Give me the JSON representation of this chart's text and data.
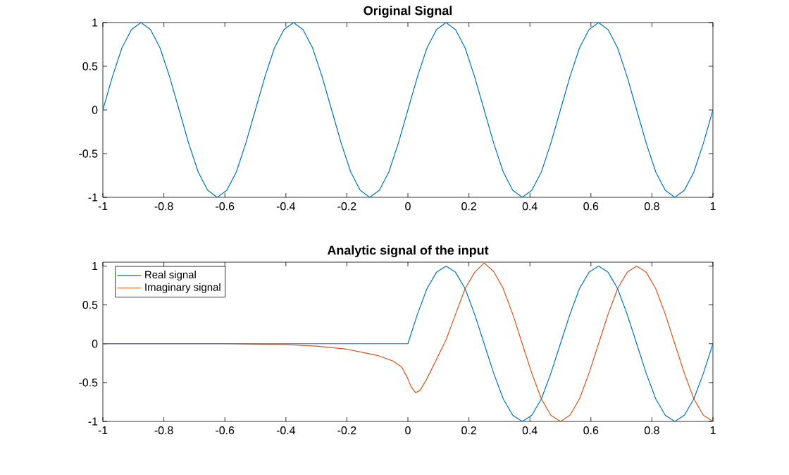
{
  "chart_data": [
    {
      "type": "line",
      "title": "Original Signal",
      "xlim": [
        -1,
        1
      ],
      "ylim": [
        -1,
        1
      ],
      "xticks": [
        -1,
        -0.8,
        -0.6,
        -0.4,
        -0.2,
        0,
        0.2,
        0.4,
        0.6,
        0.8,
        1
      ],
      "yticks": [
        -1,
        -0.5,
        0,
        0.5,
        1
      ],
      "series": [
        {
          "color": "#0072bd",
          "x": [
            -1,
            -0.96875,
            -0.9375,
            -0.90625,
            -0.875,
            -0.84375,
            -0.8125,
            -0.78125,
            -0.75,
            -0.71875,
            -0.6875,
            -0.65625,
            -0.625,
            -0.59375,
            -0.5625,
            -0.53125,
            -0.5,
            -0.46875,
            -0.4375,
            -0.40625,
            -0.375,
            -0.34375,
            -0.3125,
            -0.28125,
            -0.25,
            -0.21875,
            -0.1875,
            -0.15625,
            -0.125,
            -0.09375,
            -0.0625,
            -0.03125,
            0,
            0.03125,
            0.0625,
            0.09375,
            0.125,
            0.15625,
            0.1875,
            0.21875,
            0.25,
            0.28125,
            0.3125,
            0.34375,
            0.375,
            0.40625,
            0.4375,
            0.46875,
            0.5,
            0.53125,
            0.5625,
            0.59375,
            0.625,
            0.65625,
            0.6875,
            0.71875,
            0.75,
            0.78125,
            0.8125,
            0.84375,
            0.875,
            0.90625,
            0.9375,
            0.96875,
            1
          ],
          "values": [
            0,
            0.38,
            0.71,
            0.92,
            1,
            0.92,
            0.71,
            0.38,
            0,
            -0.38,
            -0.71,
            -0.92,
            -1,
            -0.92,
            -0.71,
            -0.38,
            0,
            0.38,
            0.71,
            0.92,
            1,
            0.92,
            0.71,
            0.38,
            0,
            -0.38,
            -0.71,
            -0.92,
            -1,
            -0.92,
            -0.71,
            -0.38,
            0,
            0.38,
            0.71,
            0.92,
            1,
            0.92,
            0.71,
            0.38,
            0,
            -0.38,
            -0.71,
            -0.92,
            -1,
            -0.92,
            -0.71,
            -0.38,
            0,
            0.38,
            0.71,
            0.92,
            1,
            0.92,
            0.71,
            0.38,
            0,
            -0.38,
            -0.71,
            -0.92,
            -1,
            -0.92,
            -0.71,
            -0.38,
            0
          ]
        }
      ]
    },
    {
      "type": "line",
      "title": "Analytic signal of the input",
      "xlim": [
        -1,
        1
      ],
      "ylim": [
        -1,
        1.05
      ],
      "xticks": [
        -1,
        -0.8,
        -0.6,
        -0.4,
        -0.2,
        0,
        0.2,
        0.4,
        0.6,
        0.8,
        1
      ],
      "yticks": [
        -1,
        -0.5,
        0,
        0.5,
        1
      ],
      "legend": "top left",
      "series": [
        {
          "name": "Real signal",
          "color": "#0072bd",
          "x": [
            -1,
            0,
            0.03125,
            0.0625,
            0.09375,
            0.125,
            0.15625,
            0.1875,
            0.21875,
            0.25,
            0.28125,
            0.3125,
            0.34375,
            0.375,
            0.40625,
            0.4375,
            0.46875,
            0.5,
            0.53125,
            0.5625,
            0.59375,
            0.625,
            0.65625,
            0.6875,
            0.71875,
            0.75,
            0.78125,
            0.8125,
            0.84375,
            0.875,
            0.90625,
            0.9375,
            0.96875,
            1
          ],
          "values": [
            0,
            0,
            0.38,
            0.71,
            0.92,
            1,
            0.92,
            0.71,
            0.38,
            0,
            -0.38,
            -0.71,
            -0.92,
            -1,
            -0.92,
            -0.71,
            -0.38,
            0,
            0.38,
            0.71,
            0.92,
            1,
            0.92,
            0.71,
            0.38,
            0,
            -0.38,
            -0.71,
            -0.92,
            -1,
            -0.92,
            -0.71,
            -0.38,
            0
          ]
        },
        {
          "name": "Imaginary signal",
          "color": "#d95319",
          "x": [
            -1,
            -0.6,
            -0.4,
            -0.3,
            -0.2,
            -0.1,
            -0.05,
            -0.02,
            0,
            0.01,
            0.025,
            0.04,
            0.0625,
            0.09375,
            0.125,
            0.15625,
            0.1875,
            0.21875,
            0.25,
            0.28125,
            0.3125,
            0.34375,
            0.375,
            0.40625,
            0.4375,
            0.46875,
            0.5,
            0.53125,
            0.5625,
            0.59375,
            0.625,
            0.65625,
            0.6875,
            0.71875,
            0.75,
            0.78125,
            0.8125,
            0.84375,
            0.875,
            0.90625,
            0.9375,
            0.96875,
            1
          ],
          "values": [
            0,
            0,
            -0.01,
            -0.03,
            -0.07,
            -0.15,
            -0.22,
            -0.3,
            -0.45,
            -0.55,
            -0.63,
            -0.6,
            -0.45,
            -0.2,
            0.05,
            0.38,
            0.71,
            0.92,
            1.04,
            0.93,
            0.71,
            0.38,
            0,
            -0.38,
            -0.71,
            -0.92,
            -1,
            -0.92,
            -0.71,
            -0.38,
            0,
            0.38,
            0.71,
            0.92,
            1,
            0.92,
            0.71,
            0.38,
            0,
            -0.38,
            -0.71,
            -0.92,
            -1
          ]
        }
      ]
    }
  ]
}
